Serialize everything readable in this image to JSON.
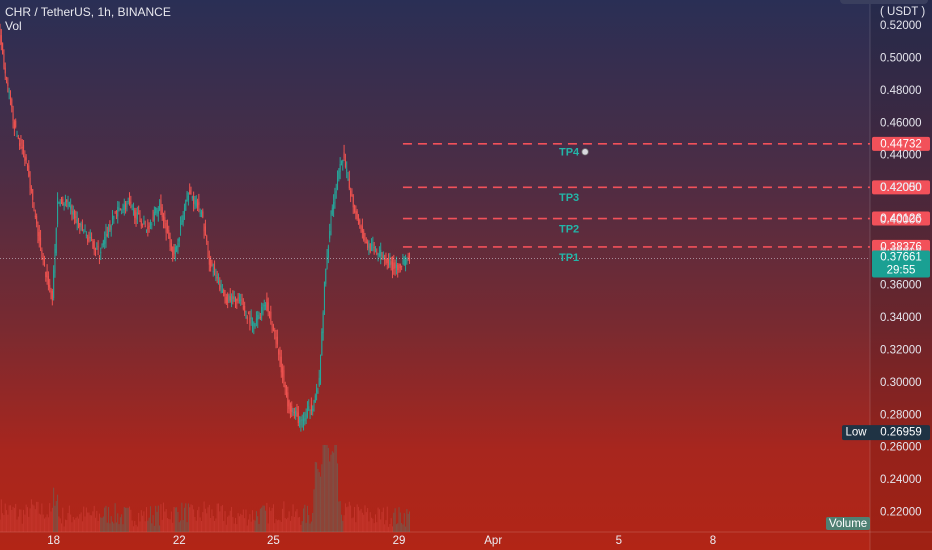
{
  "header": {
    "title": "CHR / TetherUS, 1h, BINANCE",
    "sub": "Vol"
  },
  "currency": "( USDT )",
  "chart_data": {
    "type": "candlestick",
    "title": "CHR / TetherUS, 1h, BINANCE",
    "y_ticks": [
      "0.52000",
      "0.50000",
      "0.48000",
      "0.46000",
      "0.44000",
      "0.42000",
      "0.40000",
      "0.38000",
      "0.36000",
      "0.34000",
      "0.32000",
      "0.30000",
      "0.28000",
      "0.26000",
      "0.24000",
      "0.22000"
    ],
    "y_tick_values": [
      0.52,
      0.5,
      0.48,
      0.46,
      0.44,
      0.42,
      0.4,
      0.38,
      0.36,
      0.34,
      0.32,
      0.3,
      0.28,
      0.26,
      0.24,
      0.22
    ],
    "ylim": [
      0.208,
      0.536
    ],
    "x_ticks": [
      "18",
      "22",
      "25",
      "29",
      "Apr",
      "5",
      "8"
    ],
    "x_tick_dates": [
      "2022-03-18",
      "2022-03-22",
      "2022-03-25",
      "2022-03-29",
      "2022-04-01",
      "2022-04-05",
      "2022-04-08"
    ],
    "xlim": [
      "2022-03-16T07:00",
      "2022-04-13T00:00"
    ],
    "price_path": [
      [
        "2022-03-16T07:00",
        0.52
      ],
      [
        "2022-03-16T12:00",
        0.49
      ],
      [
        "2022-03-16T20:00",
        0.455
      ],
      [
        "2022-03-17T05:00",
        0.435
      ],
      [
        "2022-03-17T10:00",
        0.405
      ],
      [
        "2022-03-17T18:00",
        0.37
      ],
      [
        "2022-03-18T00:00",
        0.352
      ],
      [
        "2022-03-18T04:00",
        0.412
      ],
      [
        "2022-03-18T12:00",
        0.41
      ],
      [
        "2022-03-18T22:00",
        0.395
      ],
      [
        "2022-03-19T12:00",
        0.38
      ],
      [
        "2022-03-20T00:00",
        0.405
      ],
      [
        "2022-03-20T10:00",
        0.41
      ],
      [
        "2022-03-21T00:00",
        0.395
      ],
      [
        "2022-03-21T10:00",
        0.41
      ],
      [
        "2022-03-21T21:00",
        0.378
      ],
      [
        "2022-03-22T08:00",
        0.418
      ],
      [
        "2022-03-22T18:00",
        0.405
      ],
      [
        "2022-03-23T00:00",
        0.375
      ],
      [
        "2022-03-23T12:00",
        0.352
      ],
      [
        "2022-03-23T23:00",
        0.35
      ],
      [
        "2022-03-24T10:00",
        0.335
      ],
      [
        "2022-03-24T19:00",
        0.35
      ],
      [
        "2022-03-25T02:00",
        0.33
      ],
      [
        "2022-03-25T12:00",
        0.288
      ],
      [
        "2022-03-25T22:00",
        0.275
      ],
      [
        "2022-03-26T08:00",
        0.288
      ],
      [
        "2022-03-26T12:00",
        0.3
      ],
      [
        "2022-03-26T16:00",
        0.36
      ],
      [
        "2022-03-26T21:00",
        0.405
      ],
      [
        "2022-03-27T06:00",
        0.44
      ],
      [
        "2022-03-27T14:00",
        0.41
      ],
      [
        "2022-03-28T00:00",
        0.385
      ],
      [
        "2022-03-28T10:00",
        0.38
      ],
      [
        "2022-03-28T20:00",
        0.372
      ],
      [
        "2022-03-29T02:00",
        0.372
      ],
      [
        "2022-03-29T08:00",
        0.3766
      ]
    ],
    "levels": [
      {
        "price": 0.44732,
        "label": "0.44732",
        "target": "TP4"
      },
      {
        "price": 0.4205,
        "label": "0.42050",
        "target": "TP3"
      },
      {
        "price": 0.40126,
        "label": "0.40126",
        "target": "TP2"
      },
      {
        "price": 0.38376,
        "label": "0.38376",
        "target": "TP1"
      }
    ],
    "current_price": {
      "value": 0.37661,
      "label": "0.37661",
      "countdown": "29:55"
    },
    "low": {
      "label": "Low",
      "value": 0.26959,
      "value_label": "0.26959"
    },
    "volume_label": "Volume",
    "colors": {
      "up": "#26a69a",
      "down": "#ef5350",
      "level": "#f2515a",
      "target": "#23b5a8",
      "low_bg": "#1f3344"
    }
  }
}
